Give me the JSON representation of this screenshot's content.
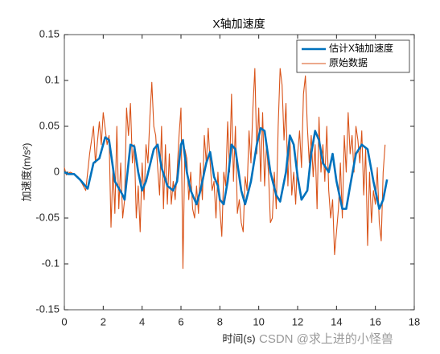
{
  "chart_data": {
    "type": "line",
    "title": "X轴加速度",
    "x_label": "时间(s)",
    "y_label": "加速度(m/s²)",
    "watermark": "CSDN @求上进的小怪兽",
    "xlim": [
      0,
      18
    ],
    "ylim": [
      -0.15,
      0.15
    ],
    "xticks": [
      0,
      2,
      4,
      6,
      8,
      10,
      12,
      14,
      16,
      18
    ],
    "yticks": [
      -0.15,
      -0.1,
      -0.05,
      0,
      0.05,
      0.1,
      0.15
    ],
    "grid": false,
    "legend_position": "northeast",
    "series": [
      {
        "name": "估计X轴加速度",
        "color": "#0072bd",
        "x": [
          0,
          0.2,
          0.5,
          0.8,
          1.2,
          1.5,
          1.8,
          2.1,
          2.3,
          2.6,
          3.0,
          3.1,
          3.4,
          3.6,
          3.8,
          4.0,
          4.2,
          4.6,
          4.8,
          5.0,
          5.3,
          5.6,
          5.8,
          6.0,
          6.1,
          6.3,
          6.5,
          6.8,
          7.0,
          7.3,
          7.5,
          7.7,
          7.9,
          8.0,
          8.2,
          8.4,
          8.6,
          8.8,
          9.1,
          9.3,
          9.6,
          9.9,
          10.1,
          10.3,
          10.6,
          10.9,
          11.1,
          11.4,
          11.6,
          11.8,
          12.0,
          12.2,
          12.5,
          12.7,
          12.9,
          13.1,
          13.3,
          13.6,
          13.8,
          14.0,
          14.3,
          14.5,
          14.7,
          15.0,
          15.3,
          15.6,
          15.9,
          16.2,
          16.4,
          16.6
        ],
        "values": [
          0,
          -0.002,
          -0.002,
          -0.008,
          -0.018,
          0.01,
          0.015,
          0.038,
          0.035,
          -0.01,
          -0.025,
          -0.03,
          0.03,
          0.028,
          0,
          -0.02,
          -0.01,
          0.025,
          0.03,
          0.005,
          -0.015,
          -0.02,
          -0.01,
          0.03,
          0.035,
          0,
          -0.02,
          -0.035,
          -0.02,
          0.01,
          0.022,
          -0.005,
          -0.015,
          -0.03,
          -0.035,
          -0.01,
          0.03,
          0.025,
          -0.02,
          -0.035,
          -0.01,
          0.03,
          0.048,
          0.045,
          0,
          -0.025,
          -0.032,
          0,
          0.04,
          0.03,
          -0.005,
          -0.03,
          -0.02,
          0.02,
          0.045,
          0.035,
          0.01,
          0,
          0.02,
          -0.01,
          -0.04,
          -0.04,
          -0.015,
          0.02,
          0.03,
          0.025,
          -0.01,
          -0.04,
          -0.03,
          -0.008
        ]
      },
      {
        "name": "原始数据",
        "color": "#d95319",
        "x": [
          0,
          0.1,
          0.3,
          0.5,
          0.7,
          0.9,
          1.1,
          1.3,
          1.5,
          1.6,
          1.8,
          1.9,
          2.0,
          2.2,
          2.3,
          2.4,
          2.5,
          2.6,
          2.7,
          2.8,
          2.9,
          3.0,
          3.1,
          3.2,
          3.3,
          3.4,
          3.5,
          3.6,
          3.7,
          3.8,
          3.9,
          4.0,
          4.1,
          4.2,
          4.3,
          4.4,
          4.5,
          4.6,
          4.7,
          4.8,
          4.9,
          5.0,
          5.1,
          5.2,
          5.3,
          5.4,
          5.5,
          5.6,
          5.7,
          5.8,
          5.9,
          6.0,
          6.1,
          6.2,
          6.3,
          6.4,
          6.5,
          6.6,
          6.7,
          6.8,
          6.9,
          7.0,
          7.1,
          7.2,
          7.3,
          7.4,
          7.5,
          7.6,
          7.7,
          7.8,
          7.9,
          8.0,
          8.1,
          8.2,
          8.3,
          8.4,
          8.5,
          8.6,
          8.7,
          8.8,
          8.9,
          9.0,
          9.1,
          9.2,
          9.3,
          9.4,
          9.5,
          9.6,
          9.7,
          9.8,
          9.9,
          10.0,
          10.1,
          10.2,
          10.3,
          10.4,
          10.5,
          10.6,
          10.7,
          10.8,
          10.9,
          11.0,
          11.1,
          11.2,
          11.3,
          11.4,
          11.5,
          11.6,
          11.7,
          11.8,
          11.9,
          12.0,
          12.1,
          12.2,
          12.3,
          12.4,
          12.5,
          12.6,
          12.7,
          12.8,
          12.9,
          13.0,
          13.1,
          13.2,
          13.3,
          13.4,
          13.5,
          13.6,
          13.7,
          13.8,
          13.9,
          14.0,
          14.1,
          14.2,
          14.3,
          14.4,
          14.5,
          14.6,
          14.7,
          14.8,
          14.9,
          15.0,
          15.1,
          15.2,
          15.3,
          15.4,
          15.5,
          15.6,
          15.7,
          15.8,
          15.9,
          16.0,
          16.1,
          16.2,
          16.3,
          16.4,
          16.5
        ],
        "values": [
          0.005,
          -0.003,
          0,
          -0.002,
          -0.005,
          -0.012,
          -0.02,
          0.02,
          0.05,
          0.01,
          0.055,
          0.03,
          0.065,
          0.03,
          0.04,
          -0.06,
          0.005,
          -0.045,
          0.05,
          -0.04,
          0.01,
          -0.05,
          -0.03,
          0.07,
          0.04,
          0.075,
          0.01,
          0.03,
          -0.05,
          -0.015,
          -0.065,
          0.01,
          -0.03,
          0.03,
          0.01,
          0.06,
          0.098,
          0.05,
          0.04,
          0.005,
          -0.025,
          0.05,
          -0.04,
          0.03,
          -0.035,
          0.02,
          -0.035,
          -0.01,
          -0.03,
          0,
          0.04,
          0.07,
          -0.105,
          0.025,
          0.015,
          -0.03,
          0,
          -0.04,
          -0.05,
          -0.015,
          -0.045,
          0.01,
          -0.03,
          0.04,
          0.01,
          0.048,
          0.01,
          -0.02,
          -0.01,
          -0.05,
          0,
          -0.04,
          -0.07,
          0,
          -0.015,
          0.055,
          0,
          0.085,
          -0.01,
          0.05,
          -0.045,
          -0.03,
          -0.055,
          -0.065,
          -0.005,
          -0.02,
          0.045,
          0.01,
          0.07,
          0.113,
          0.02,
          0.07,
          -0.01,
          0.065,
          -0.015,
          0.03,
          0,
          -0.055,
          -0.05,
          0,
          -0.04,
          0.05,
          0.113,
          0.095,
          0.035,
          0.075,
          -0.015,
          0.04,
          -0.025,
          0,
          -0.035,
          0.02,
          0.045,
          0.005,
          0.085,
          0.105,
          0.05,
          0.01,
          0.04,
          -0.005,
          0.03,
          -0.04,
          0.06,
          0,
          0.03,
          -0.01,
          0.05,
          -0.02,
          -0.05,
          -0.03,
          -0.09,
          -0.065,
          -0.04,
          0.01,
          -0.05,
          0.04,
          0,
          0.065,
          0.02,
          0.04,
          0,
          0.05,
          0.035,
          0.01,
          0.045,
          -0.025,
          0.025,
          -0.08,
          0,
          -0.055,
          -0.02,
          -0.035,
          0.005,
          -0.055,
          -0.075,
          0,
          0.03
        ]
      }
    ]
  }
}
